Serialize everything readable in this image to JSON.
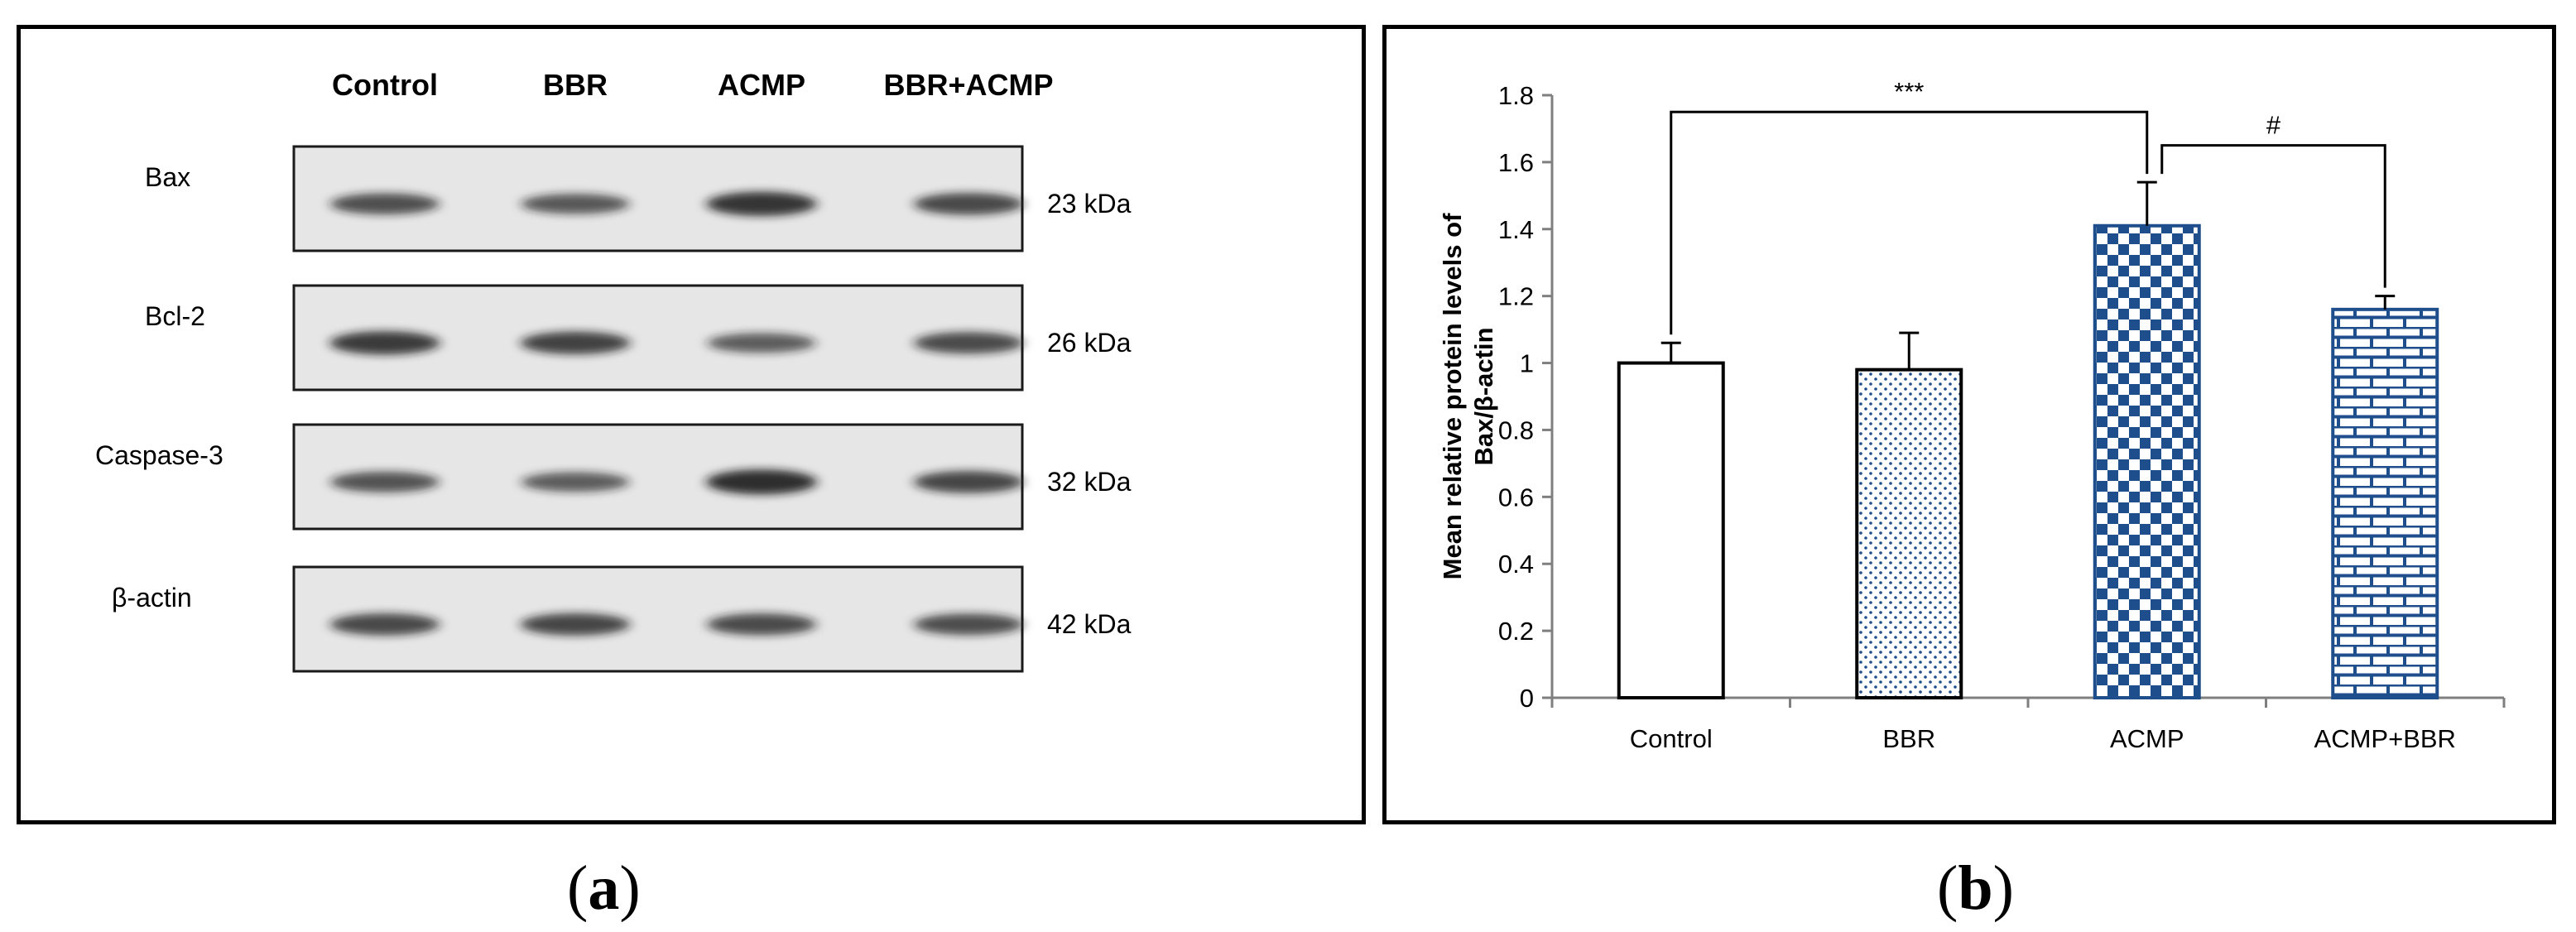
{
  "figure": {
    "panel_a_label": "a",
    "panel_b_label": "b"
  },
  "blot": {
    "lanes": [
      "Control",
      "BBR",
      "ACMP",
      "BBR+ACMP"
    ],
    "rows": [
      {
        "protein": "Bax",
        "size": "23 kDa",
        "intensity": [
          0.65,
          0.58,
          0.85,
          0.7
        ]
      },
      {
        "protein": "Bcl-2",
        "size": "26 kDa",
        "intensity": [
          0.8,
          0.75,
          0.55,
          0.68
        ]
      },
      {
        "protein": "Caspase-3",
        "size": "32 kDa",
        "intensity": [
          0.62,
          0.55,
          0.9,
          0.72
        ]
      },
      {
        "protein": "β-actin",
        "size": "42 kDa",
        "intensity": [
          0.7,
          0.72,
          0.68,
          0.66
        ]
      }
    ]
  },
  "chart_data": {
    "type": "bar",
    "categories": [
      "Control",
      "BBR",
      "ACMP",
      "ACMP+BBR"
    ],
    "values": [
      1.0,
      0.98,
      1.41,
      1.16
    ],
    "errors": [
      0.06,
      0.11,
      0.13,
      0.04
    ],
    "patterns": [
      "none",
      "dots",
      "checker",
      "brick"
    ],
    "pattern_color": "#1f4e8c",
    "title": "",
    "xlabel": "",
    "ylabel_line1": "Mean relative protein levels of",
    "ylabel_line2": "Bax/β-actin",
    "ylim": [
      0,
      1.8
    ],
    "yticks": [
      0,
      0.2,
      0.4,
      0.6,
      0.8,
      1,
      1.2,
      1.4,
      1.6,
      1.8
    ],
    "significance": [
      {
        "from": 0,
        "to": 2,
        "label": "***"
      },
      {
        "from": 2,
        "to": 3,
        "label": "#"
      }
    ]
  }
}
